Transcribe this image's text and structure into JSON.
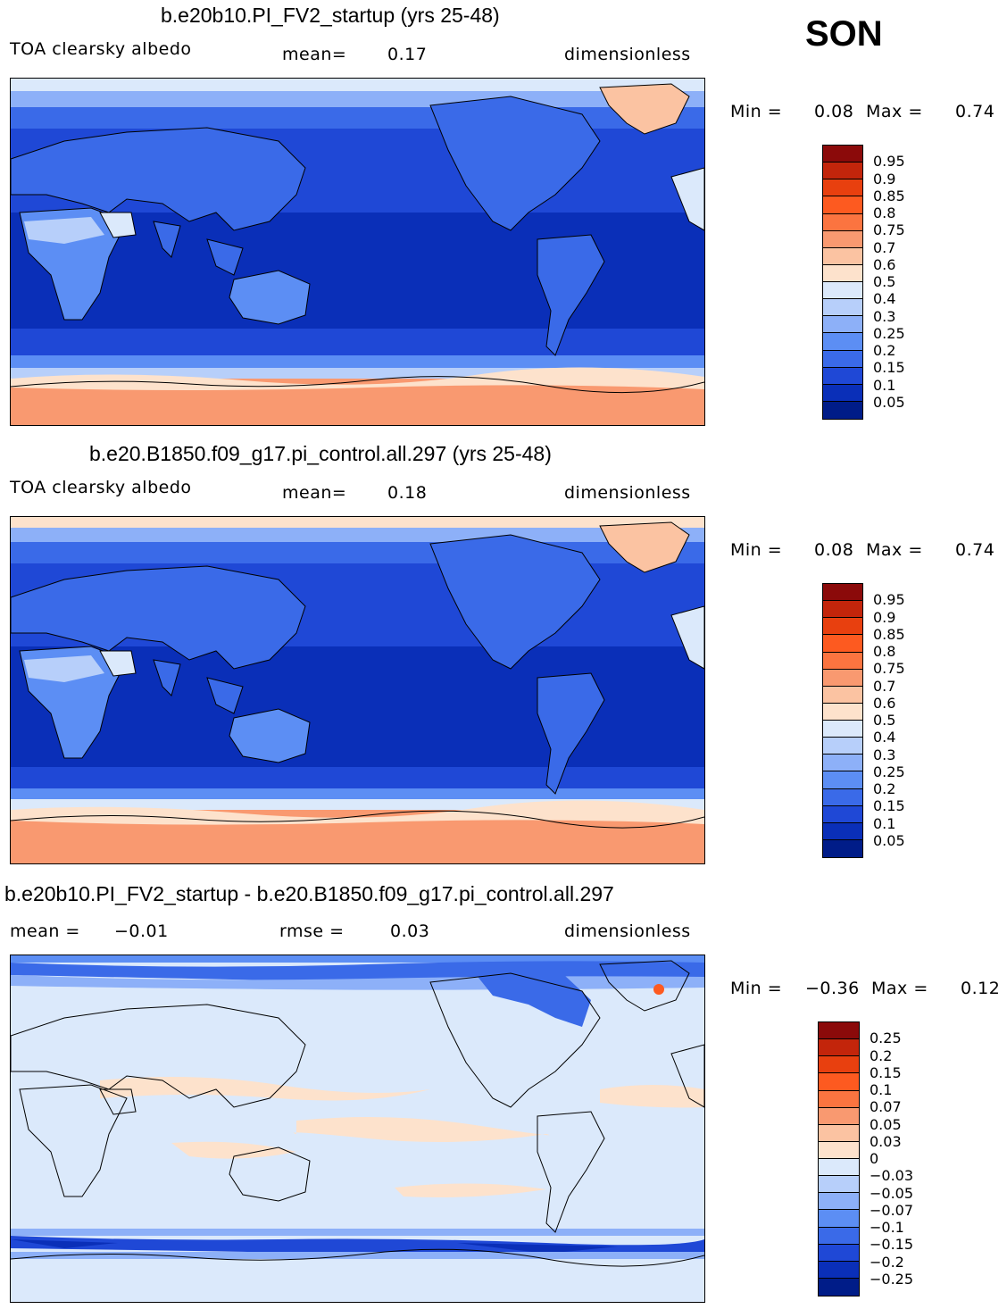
{
  "season": "SON",
  "panels": [
    {
      "title": "b.e20b10.PI_FV2_startup (yrs 25-48)",
      "variable": "TOA clearsky albedo",
      "mean_label": "mean=",
      "mean_value": "0.17",
      "units": "dimensionless",
      "min_label": "Min =",
      "min_value": "0.08",
      "max_label": "Max =",
      "max_value": "0.74"
    },
    {
      "title": "b.e20.B1850.f09_g17.pi_control.all.297 (yrs 25-48)",
      "variable": "TOA clearsky albedo",
      "mean_label": "mean=",
      "mean_value": "0.18",
      "units": "dimensionless",
      "min_label": "Min =",
      "min_value": "0.08",
      "max_label": "Max =",
      "max_value": "0.74"
    },
    {
      "title": "b.e20b10.PI_FV2_startup - b.e20.B1850.f09_g17.pi_control.all.297",
      "mean_label": "mean =",
      "mean_value": "−0.01",
      "rmse_label": "rmse =",
      "rmse_value": "0.03",
      "units": "dimensionless",
      "min_label": "Min =",
      "min_value": "−0.36",
      "max_label": "Max =",
      "max_value": "0.12"
    }
  ],
  "colorbars": {
    "albedo": {
      "labels": [
        "0.95",
        "0.9",
        "0.85",
        "0.8",
        "0.75",
        "0.7",
        "0.6",
        "0.5",
        "0.4",
        "0.3",
        "0.25",
        "0.2",
        "0.15",
        "0.1",
        "0.05"
      ],
      "colors": [
        "#8b0a0a",
        "#c3250b",
        "#e8400f",
        "#fd5a20",
        "#fb7440",
        "#f99970",
        "#fbc3a2",
        "#fde2cc",
        "#dbe9fb",
        "#b7cffa",
        "#8db0f8",
        "#5c8ef4",
        "#3a6ae8",
        "#1f48d6",
        "#0a2fb8",
        "#001c88"
      ]
    },
    "difference": {
      "labels": [
        "0.25",
        "0.2",
        "0.15",
        "0.1",
        "0.07",
        "0.05",
        "0.03",
        "0",
        "−0.03",
        "−0.05",
        "−0.07",
        "−0.1",
        "−0.15",
        "−0.2",
        "−0.25"
      ],
      "colors": [
        "#8b0a0a",
        "#c3250b",
        "#e8400f",
        "#fd5a20",
        "#fb7440",
        "#f99970",
        "#fbc3a2",
        "#fde2cc",
        "#dbe9fb",
        "#b7cffa",
        "#8db0f8",
        "#5c8ef4",
        "#3a6ae8",
        "#1f48d6",
        "#0a2fb8",
        "#001c88"
      ]
    }
  }
}
